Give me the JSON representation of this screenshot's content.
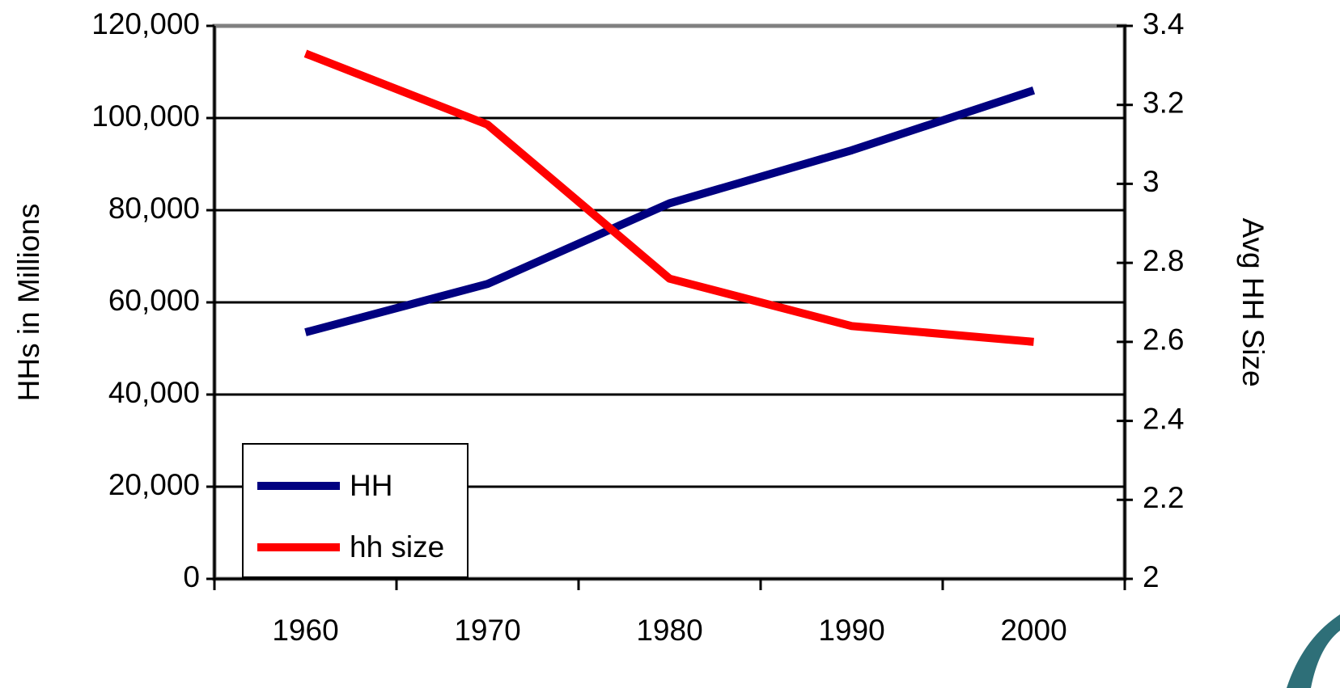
{
  "chart_data": {
    "type": "line",
    "categories": [
      "1960",
      "1970",
      "1980",
      "1990",
      "2000"
    ],
    "series": [
      {
        "name": "HH",
        "color": "#000080",
        "values": [
          53500,
          64000,
          81500,
          93000,
          106000
        ]
      },
      {
        "name": "hh size",
        "color": "#ff0000",
        "axis": "y2",
        "values": [
          3.33,
          3.15,
          2.76,
          2.64,
          2.6
        ]
      }
    ],
    "ylabel": "HHs in Millions",
    "y2label": "Avg HH Size",
    "ylim": [
      0,
      120000
    ],
    "yticks": [
      0,
      {
        "value": 20000,
        "label": "20,000"
      },
      {
        "value": 40000,
        "label": "40,000"
      },
      {
        "value": 60000,
        "label": "60,000"
      },
      {
        "value": 80000,
        "label": "80,000"
      },
      {
        "value": 100000,
        "label": "100,000"
      },
      {
        "value": 120000,
        "label": "120,000"
      }
    ],
    "y2lim": [
      2,
      3.4
    ],
    "y2ticks": [
      2,
      2.2,
      2.4,
      2.6,
      2.8,
      3,
      3.2,
      3.4
    ],
    "grid": true,
    "legend": "lower-left"
  }
}
